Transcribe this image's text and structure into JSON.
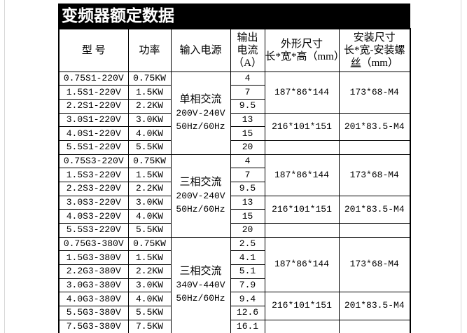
{
  "page": {
    "title": "变频器额定数据"
  },
  "colors": {
    "title_bar_background": "#000000",
    "title_text": "#ffffff",
    "table_border": "#000000",
    "cell_text": "#000000",
    "page_edge_line": "#d8d8d8",
    "page_background": "#ffffff"
  },
  "table": {
    "headers": {
      "model": "型 号",
      "power": "功率",
      "input_power": "输入电源",
      "output_current_lines": [
        "输出",
        "电流",
        "（A）"
      ],
      "outline_dim_lines": [
        "外形尺寸",
        "长*宽*高（mm）"
      ],
      "mount_dim_lines": [
        "安装尺寸",
        "长*宽-安装螺"
      ],
      "mount_dim_line3_underlined": "丝",
      "mount_dim_line3_rest": "（mm）"
    },
    "groups": [
      {
        "input_power_lines": [
          "单相交流",
          "200V-240V",
          "50Hz/60Hz"
        ],
        "rows": [
          {
            "model": "0.75S1-220V",
            "power": "0.75KW",
            "current": "4"
          },
          {
            "model": "1.5S1-220V",
            "power": "1.5KW",
            "current": "7"
          },
          {
            "model": "2.2S1-220V",
            "power": "2.2KW",
            "current": "9.5"
          },
          {
            "model": "3.0S1-220V",
            "power": "3.0KW",
            "current": "13"
          },
          {
            "model": "4.0S1-220V",
            "power": "4.0KW",
            "current": "15"
          },
          {
            "model": "5.5S1-220V",
            "power": "5.5KW",
            "current": "20"
          }
        ],
        "dimension_blocks": [
          {
            "row_span": 3,
            "outline": "187*86*144",
            "mounting": "173*68-M4"
          },
          {
            "row_span": 2,
            "outline": "216*101*151",
            "mounting": "201*83.5-M4"
          },
          {
            "row_span": 1,
            "outline": "",
            "mounting": ""
          }
        ]
      },
      {
        "input_power_lines": [
          "三相交流",
          "200V-240V",
          "50Hz/60Hz"
        ],
        "rows": [
          {
            "model": "0.75S3-220V",
            "power": "0.75KW",
            "current": "4"
          },
          {
            "model": "1.5S3-220V",
            "power": "1.5KW",
            "current": "7"
          },
          {
            "model": "2.2S3-220V",
            "power": "2.2KW",
            "current": "9.5"
          },
          {
            "model": "3.0S3-220V",
            "power": "3.0KW",
            "current": "13"
          },
          {
            "model": "4.0S3-220V",
            "power": "4.0KW",
            "current": "15"
          },
          {
            "model": "5.5S3-220V",
            "power": "5.5KW",
            "current": "20"
          }
        ],
        "dimension_blocks": [
          {
            "row_span": 3,
            "outline": "187*86*144",
            "mounting": "173*68-M4"
          },
          {
            "row_span": 2,
            "outline": "216*101*151",
            "mounting": "201*83.5-M4"
          },
          {
            "row_span": 1,
            "outline": "",
            "mounting": ""
          }
        ]
      },
      {
        "input_power_lines": [
          "三相交流",
          "340V-440V",
          "50Hz/60Hz"
        ],
        "rows": [
          {
            "model": "0.75G3-380V",
            "power": "0.75KW",
            "current": "2.5"
          },
          {
            "model": "1.5G3-380V",
            "power": "1.5KW",
            "current": "4.1"
          },
          {
            "model": "2.2G3-380V",
            "power": "2.2KW",
            "current": "5.1"
          },
          {
            "model": "3.0G3-380V",
            "power": "3.0KW",
            "current": "7.9"
          },
          {
            "model": "4.0G3-380V",
            "power": "4.0KW",
            "current": "9.4"
          },
          {
            "model": "5.5G3-380V",
            "power": "5.5KW",
            "current": "12.6"
          },
          {
            "model": "7.5G3-380V",
            "power": "7.5KW",
            "current": "16.1"
          }
        ],
        "dimension_blocks": [
          {
            "row_span": 4,
            "outline": "187*86*144",
            "mounting": "173*68-M4"
          },
          {
            "row_span": 2,
            "outline": "216*101*151",
            "mounting": "201*83.5-M4"
          },
          {
            "row_span": 1,
            "outline": "",
            "mounting": ""
          }
        ]
      }
    ]
  }
}
